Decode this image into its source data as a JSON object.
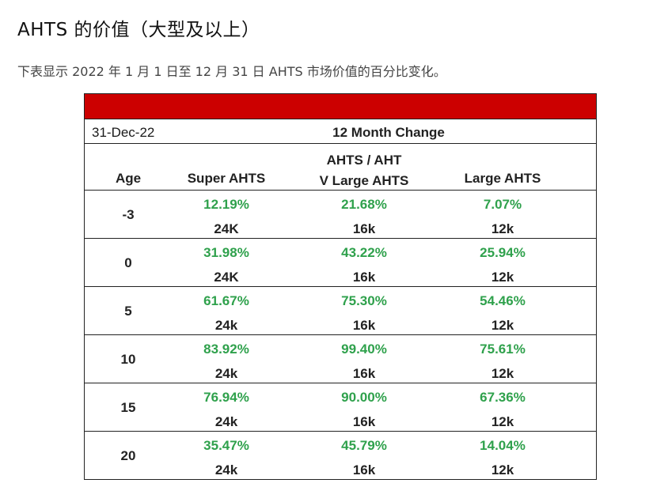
{
  "heading": "AHTS 的价值（大型及以上）",
  "description": "下表显示 2022 年 1 月 1 日至 12 月 31 日 AHTS 市场价值的百分比变化。",
  "accent_color": "#cc0000",
  "positive_color": "#2fa14c",
  "table": {
    "date_label": "31-Dec-22",
    "change_label": "12 Month Change",
    "columns": {
      "age": "Age",
      "super": "Super AHTS",
      "vlarge_line1": "AHTS / AHT",
      "vlarge_line2": "V Large AHTS",
      "large": "Large AHTS"
    },
    "rows": [
      {
        "age": "-3",
        "super_pct": "12.19%",
        "vlarge_pct": "21.68%",
        "large_pct": "7.07%",
        "super_size": "24K",
        "vlarge_size": "16k",
        "large_size": "12k"
      },
      {
        "age": "0",
        "super_pct": "31.98%",
        "vlarge_pct": "43.22%",
        "large_pct": "25.94%",
        "super_size": "24K",
        "vlarge_size": "16k",
        "large_size": "12k"
      },
      {
        "age": "5",
        "super_pct": "61.67%",
        "vlarge_pct": "75.30%",
        "large_pct": "54.46%",
        "super_size": "24k",
        "vlarge_size": "16k",
        "large_size": "12k"
      },
      {
        "age": "10",
        "super_pct": "83.92%",
        "vlarge_pct": "99.40%",
        "large_pct": "75.61%",
        "super_size": "24k",
        "vlarge_size": "16k",
        "large_size": "12k"
      },
      {
        "age": "15",
        "super_pct": "76.94%",
        "vlarge_pct": "90.00%",
        "large_pct": "67.36%",
        "super_size": "24k",
        "vlarge_size": "16k",
        "large_size": "12k"
      },
      {
        "age": "20",
        "super_pct": "35.47%",
        "vlarge_pct": "45.79%",
        "large_pct": "14.04%",
        "super_size": "24k",
        "vlarge_size": "16k",
        "large_size": "12k"
      }
    ]
  }
}
